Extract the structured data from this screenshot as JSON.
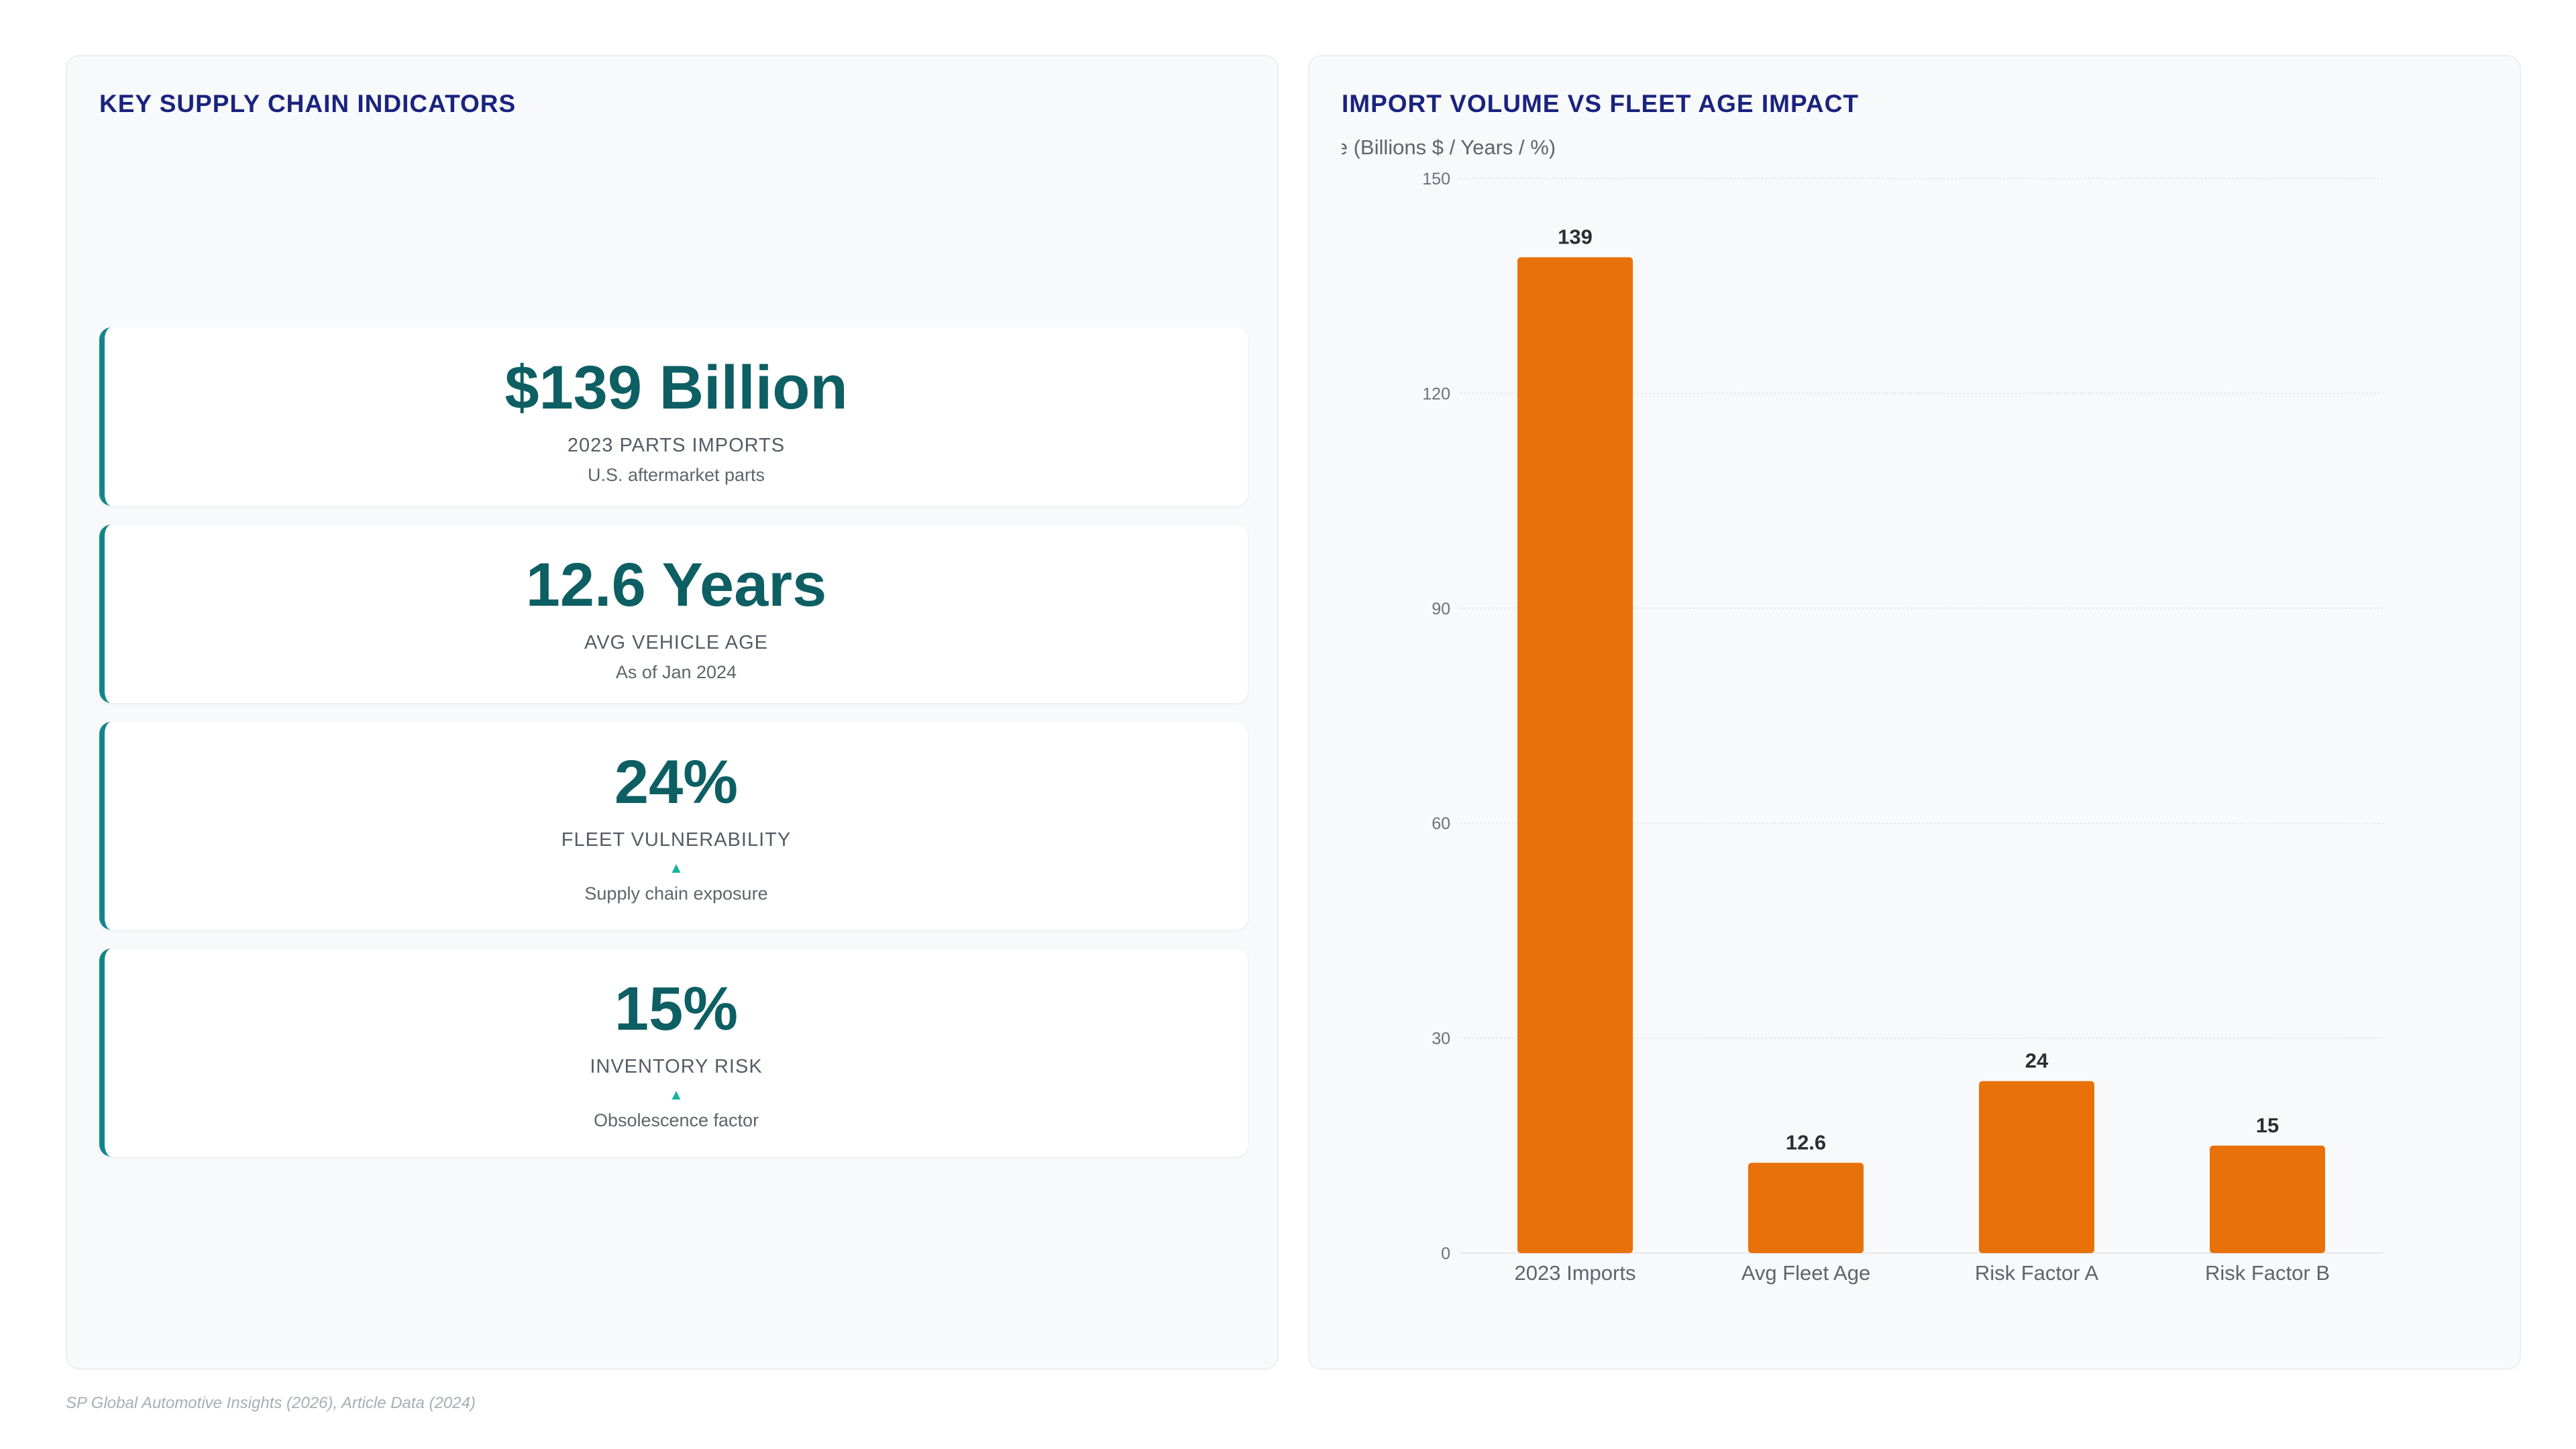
{
  "left_panel": {
    "title": "KEY SUPPLY CHAIN INDICATORS",
    "kpis": [
      {
        "value": "$139 Billion",
        "label": "2023 PARTS IMPORTS",
        "trend": "",
        "sub": "U.S. aftermarket parts"
      },
      {
        "value": "12.6 Years",
        "label": "AVG VEHICLE AGE",
        "trend": "",
        "sub": "As of Jan 2024"
      },
      {
        "value": "24%",
        "label": "FLEET VULNERABILITY",
        "trend": "▲",
        "sub": "Supply chain exposure"
      },
      {
        "value": "15%",
        "label": "INVENTORY RISK",
        "trend": "▲",
        "sub": "Obsolescence factor"
      }
    ]
  },
  "right_panel": {
    "title": "IMPORT VOLUME VS FLEET AGE IMPACT"
  },
  "chart_data": {
    "type": "bar",
    "title": "IMPORT VOLUME VS FLEET AGE IMPACT",
    "ylabel": "Value (Billions $ / Years / %)",
    "xlabel": "",
    "categories": [
      "2023 Imports",
      "Avg Fleet Age",
      "Risk Factor A",
      "Risk Factor B"
    ],
    "values": [
      139,
      12.6,
      24,
      15
    ],
    "data_labels": [
      "139",
      "12.6",
      "24",
      "15"
    ],
    "ylim": [
      0,
      150
    ],
    "yticks": [
      0,
      30,
      60,
      90,
      120,
      150
    ],
    "grid": true,
    "legend": "none",
    "bar_color": "#e8710a"
  },
  "footer": {
    "source": "SP Global Automotive Insights (2026), Article Data (2024)"
  }
}
